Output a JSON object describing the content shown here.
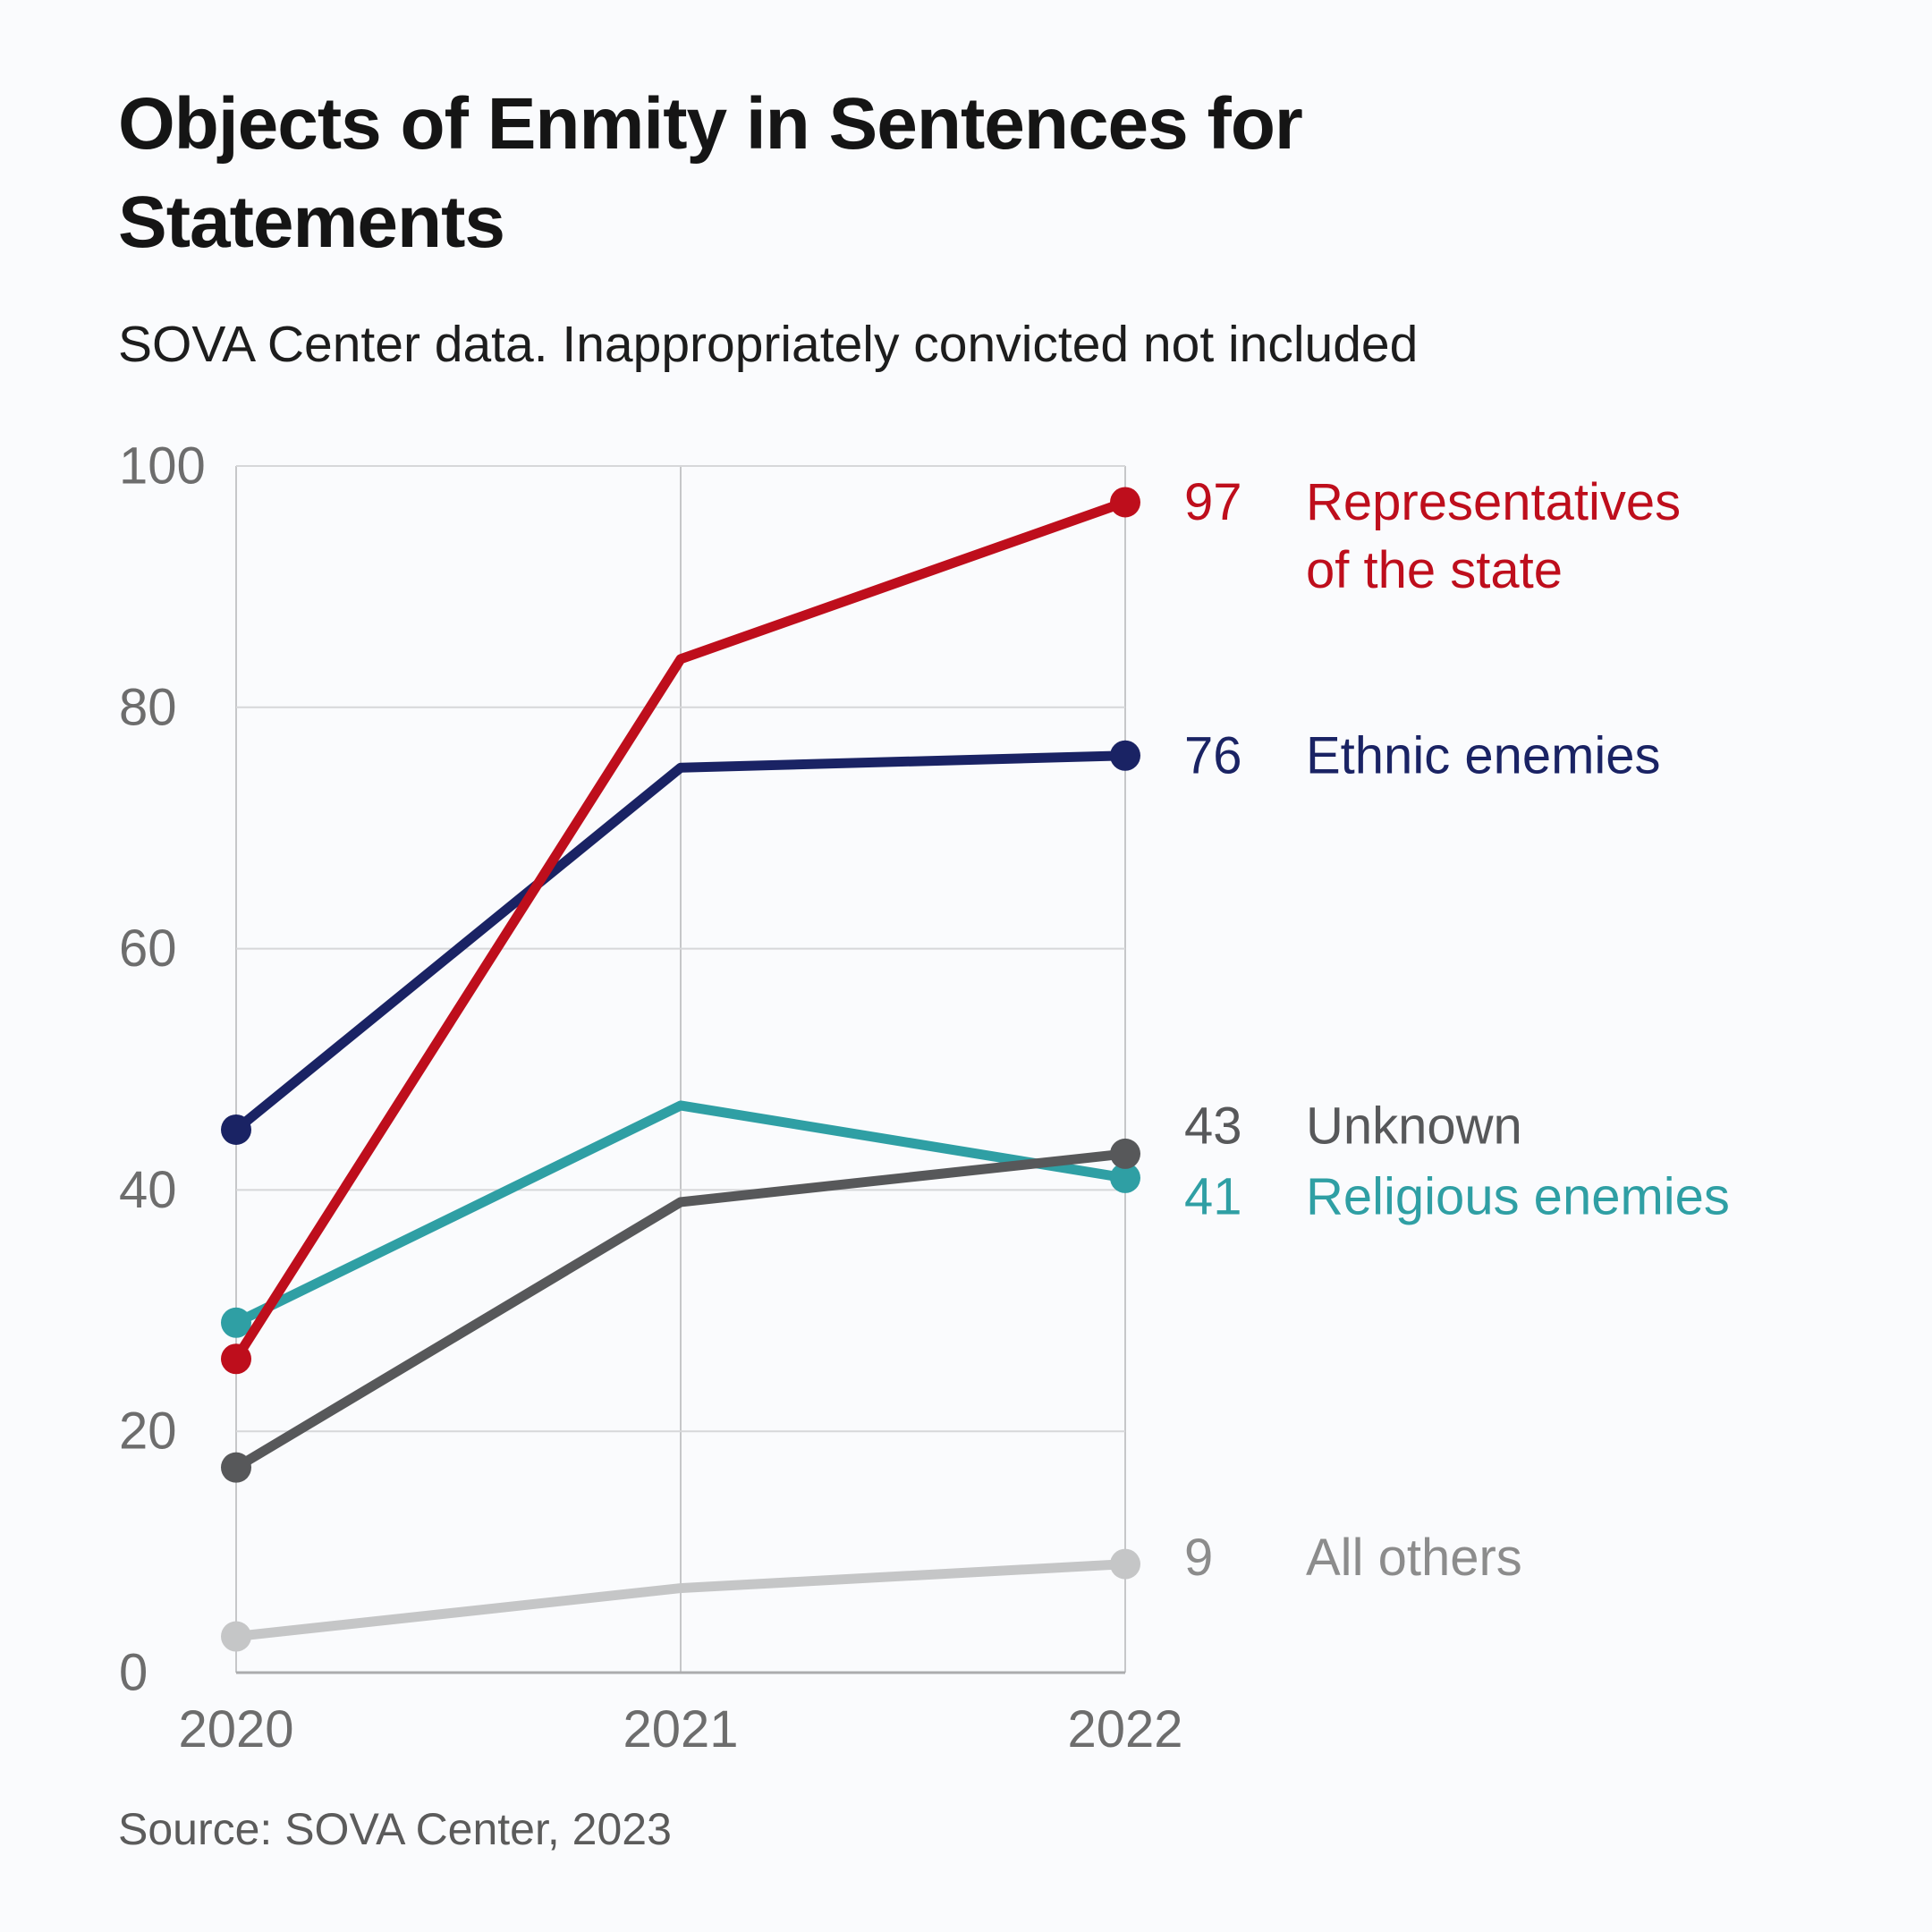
{
  "page": {
    "background_color": "#FAFBFD"
  },
  "header": {
    "title": "Objects of Enmity in Sentences for Statements",
    "subtitle": "SOVA Center data. Inappropriately convicted not included"
  },
  "footer": {
    "source": "Source: SOVA Center, 2023"
  },
  "chart_data": {
    "type": "line",
    "x": [
      "2020",
      "2021",
      "2022"
    ],
    "series": [
      {
        "name": "Representatives of the state",
        "label_lines": [
          "Representatives",
          "of the state"
        ],
        "values": [
          26,
          84,
          97
        ],
        "end_label": "97",
        "color": "#BE0E1C"
      },
      {
        "name": "Ethnic enemies",
        "label_lines": [
          "Ethnic enemies"
        ],
        "values": [
          45,
          75,
          76
        ],
        "end_label": "76",
        "color": "#1A2364"
      },
      {
        "name": "Unknown",
        "label_lines": [
          "Unknown"
        ],
        "values": [
          17,
          39,
          43
        ],
        "end_label": "43",
        "color": "#57585A"
      },
      {
        "name": "Religious enemies",
        "label_lines": [
          "Religious enemies"
        ],
        "values": [
          29,
          47,
          41
        ],
        "end_label": "41",
        "color": "#2F9FA4"
      },
      {
        "name": "All others",
        "label_lines": [
          "All others"
        ],
        "values": [
          3,
          7,
          9
        ],
        "end_label": "9",
        "color": "#C5C6C7",
        "label_color": "#8C8C8C"
      }
    ],
    "yticks": [
      0,
      20,
      40,
      60,
      80,
      100
    ],
    "ylim": [
      0,
      100
    ],
    "grid": true,
    "legend_position": "right-of-line-ends",
    "axis_text_color": "#6D6D6D"
  }
}
